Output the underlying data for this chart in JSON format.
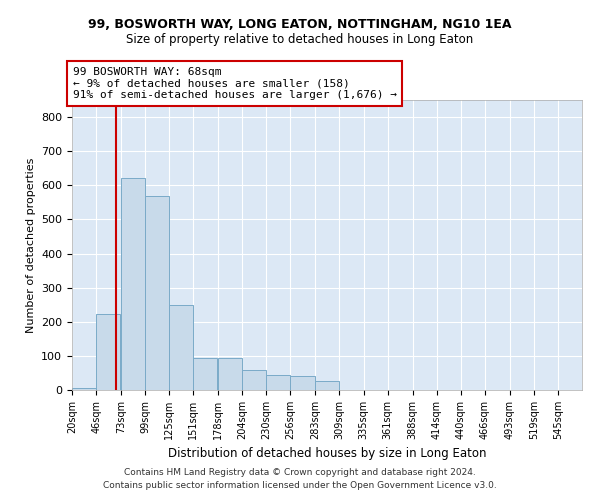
{
  "title1": "99, BOSWORTH WAY, LONG EATON, NOTTINGHAM, NG10 1EA",
  "title2": "Size of property relative to detached houses in Long Eaton",
  "xlabel": "Distribution of detached houses by size in Long Eaton",
  "ylabel": "Number of detached properties",
  "bar_color": "#c8daea",
  "bar_edge_color": "#7aaac8",
  "background_color": "#dce8f5",
  "bin_labels": [
    "20sqm",
    "46sqm",
    "73sqm",
    "99sqm",
    "125sqm",
    "151sqm",
    "178sqm",
    "204sqm",
    "230sqm",
    "256sqm",
    "283sqm",
    "309sqm",
    "335sqm",
    "361sqm",
    "388sqm",
    "414sqm",
    "440sqm",
    "466sqm",
    "493sqm",
    "519sqm",
    "545sqm"
  ],
  "bin_edges": [
    20,
    46,
    73,
    99,
    125,
    151,
    178,
    204,
    230,
    256,
    283,
    309,
    335,
    361,
    388,
    414,
    440,
    466,
    493,
    519,
    545
  ],
  "bar_heights": [
    5,
    222,
    620,
    568,
    250,
    95,
    95,
    60,
    45,
    40,
    25,
    0,
    0,
    0,
    0,
    0,
    0,
    0,
    0,
    0
  ],
  "property_size": 68,
  "property_label": "99 BOSWORTH WAY: 68sqm",
  "annotation_line1": "← 9% of detached houses are smaller (158)",
  "annotation_line2": "91% of semi-detached houses are larger (1,676) →",
  "ylim": [
    0,
    850
  ],
  "yticks": [
    0,
    100,
    200,
    300,
    400,
    500,
    600,
    700,
    800
  ],
  "red_line_color": "#cc0000",
  "footer1": "Contains HM Land Registry data © Crown copyright and database right 2024.",
  "footer2": "Contains public sector information licensed under the Open Government Licence v3.0."
}
